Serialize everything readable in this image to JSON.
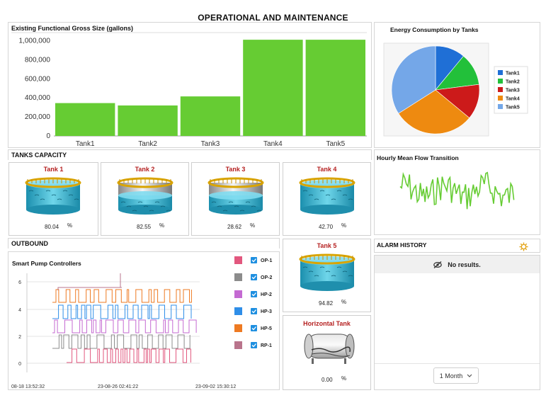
{
  "dashboard": {
    "title": "OPERATIONAL AND MAINTENANCE"
  },
  "gross_size": {
    "title": "Existing Functional Gross Size (gallons)",
    "chart_data": {
      "type": "bar",
      "categories": [
        "Tank1",
        "Tank2",
        "Tank3",
        "Tank4",
        "Tank5"
      ],
      "values": [
        345000,
        320000,
        415000,
        1010000,
        1010000
      ],
      "yticks": [
        "1,000,000",
        "800,000",
        "600,000",
        "400,000",
        "200,000",
        "0"
      ],
      "ylim": [
        0,
        1100000
      ],
      "bar_color": "#66cc33"
    }
  },
  "energy": {
    "title": "Energy Consumption by Tanks",
    "chart_data": {
      "type": "pie",
      "labels": [
        "Tank1",
        "Tank2",
        "Tank3",
        "Tank4",
        "Tank5"
      ],
      "values": [
        11,
        12,
        13,
        30,
        34
      ],
      "colors": [
        "#1f6fd6",
        "#22c03a",
        "#cc1a1a",
        "#ee8a10",
        "#74a7e8"
      ],
      "legend_position": "right"
    }
  },
  "tanks_capacity": {
    "title": "TANKS CAPACITY",
    "unit": "%",
    "tanks": [
      {
        "name": "Tank 1",
        "value": "80.04",
        "style": "full"
      },
      {
        "name": "Tank 2",
        "value": "82.55",
        "style": "partial"
      },
      {
        "name": "Tank 3",
        "value": "28.62",
        "style": "partial"
      },
      {
        "name": "Tank 4",
        "value": "42.70",
        "style": "full"
      },
      {
        "name": "Tank 5",
        "value": "94.82",
        "style": "full"
      }
    ],
    "horizontal": {
      "name": "Horizontal Tank",
      "value": "0.00"
    }
  },
  "flow": {
    "title": "Hourly Mean Flow Transition",
    "line_color": "#66cc33"
  },
  "outbound": {
    "title": "OUTBOUND",
    "subtitle": "Smart Pump Controllers",
    "chart_data": {
      "type": "line",
      "yticks": [
        "6",
        "4",
        "2",
        "0"
      ],
      "xticks": [
        "08-18 13:52:32",
        "23-08-26 02:41:22",
        "23-09-02 15:30:12"
      ],
      "series": [
        {
          "name": "OP-1",
          "color": "#e2577e"
        },
        {
          "name": "OP-2",
          "color": "#8c8c8c"
        },
        {
          "name": "HP-2",
          "color": "#c46ad2"
        },
        {
          "name": "HP-3",
          "color": "#2f8ee8"
        },
        {
          "name": "HP-5",
          "color": "#ee7a22"
        },
        {
          "name": "RP-1",
          "color": "#b9748c"
        }
      ]
    }
  },
  "alarm": {
    "title": "ALARM HISTORY",
    "empty_text": "No results.",
    "period": "1 Month"
  }
}
